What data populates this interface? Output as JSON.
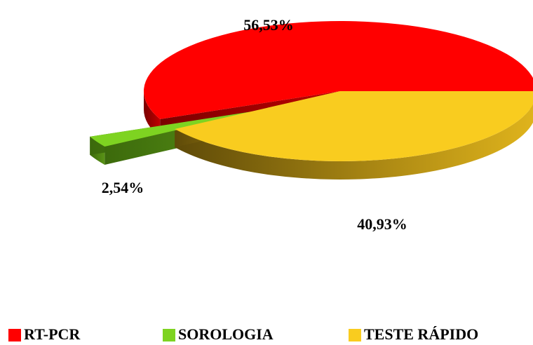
{
  "chart_data": {
    "type": "pie",
    "categories": [
      "RT-PCR",
      "SOROLOGIA",
      "TESTE RÁPIDO"
    ],
    "values": [
      56.53,
      2.54,
      40.93
    ],
    "value_labels": [
      "56,53%",
      "2,54%",
      "40,93%"
    ],
    "colors": [
      "#ff0000",
      "#7ed321",
      "#f9cc1f"
    ],
    "legend": "bottom"
  }
}
